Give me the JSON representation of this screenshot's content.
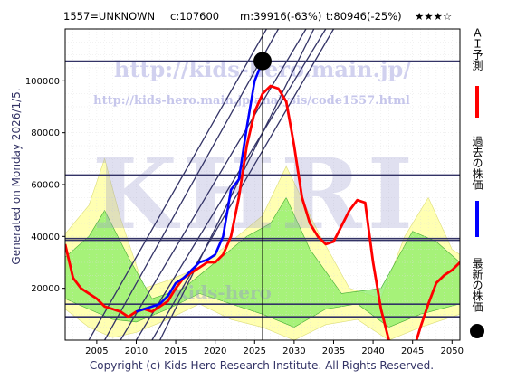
{
  "header": {
    "code": "1557=UNKNOWN",
    "current": "c:107600",
    "min": "m:39916(-63%)",
    "target": "t:80946(-25%)",
    "stars": "★★★☆"
  },
  "generated_label": "Generated on Monday 2026/1/5.",
  "copyright": "Copyright (c) Kids-Hero Research Institute. All Rights Reserved.",
  "watermark": {
    "url1": "http://kids-hero.main.jp/",
    "url2": "http://kids-hero.main.jp/analysis/code1557.html",
    "big": "KHRI",
    "small": "Kids-hero"
  },
  "legend": [
    {
      "label": "ＡＩ予測",
      "color": "#ff0000"
    },
    {
      "label": "過去の株価",
      "color": "#0000ff"
    },
    {
      "label": "最新の株価",
      "color": "#000000"
    }
  ],
  "colors": {
    "ai": "#ff0000",
    "past": "#0000ff",
    "band_green": "#88ee66",
    "band_yellow": "#ffffaa",
    "grid": "#bbbbbb",
    "hline": "#333366",
    "diag": "#333366"
  },
  "chart_data": {
    "type": "line",
    "xlim": [
      2001,
      2051
    ],
    "ylim": [
      0,
      120000
    ],
    "x_ticks": [
      "2005",
      "2010",
      "2015",
      "2020",
      "2025",
      "2030",
      "2035",
      "2040",
      "2045",
      "2050"
    ],
    "y_ticks": [
      "20000",
      "40000",
      "60000",
      "80000",
      "100000"
    ],
    "grid": true,
    "latest_point": {
      "x": 2026.0,
      "y": 107600
    },
    "latest_year": 2026.0,
    "horizontal_lines": [
      107600,
      63700,
      39200,
      38500,
      13900,
      9000
    ],
    "trend_lines": [
      {
        "x1": 2010.0,
        "y1": 0,
        "x2": 2034.0,
        "y2": 120000
      },
      {
        "x1": 2012.0,
        "y1": 0,
        "x2": 2035.0,
        "y2": 120000
      },
      {
        "x1": 2008.0,
        "y1": 0,
        "x2": 2031.5,
        "y2": 120000
      },
      {
        "x1": 2013.0,
        "y1": 0,
        "x2": 2032.5,
        "y2": 120000
      },
      {
        "x1": 2006.0,
        "y1": 0,
        "x2": 2028.0,
        "y2": 120000
      },
      {
        "x1": 2004.0,
        "y1": 0,
        "x2": 2026.5,
        "y2": 120000
      }
    ],
    "series": [
      {
        "key": "ai",
        "x": [
          2001,
          2002,
          2003,
          2004,
          2005,
          2006,
          2007,
          2008,
          2009,
          2010,
          2011,
          2012,
          2013,
          2014,
          2015,
          2016,
          2017,
          2018,
          2019,
          2020,
          2021,
          2022,
          2023,
          2024,
          2025,
          2026,
          2027,
          2028,
          2029,
          2030,
          2031,
          2032,
          2033,
          2034,
          2035,
          2036,
          2037,
          2038,
          2039,
          2040,
          2041,
          2042,
          2043,
          2044,
          2045,
          2046,
          2047,
          2048,
          2049,
          2050,
          2051
        ],
        "y": [
          37000,
          24000,
          20000,
          18000,
          16000,
          13000,
          12000,
          11000,
          9000,
          11000,
          12000,
          11000,
          13000,
          15000,
          20000,
          24000,
          26000,
          28000,
          30000,
          30000,
          33000,
          40000,
          55000,
          75000,
          88000,
          95000,
          98000,
          97000,
          92000,
          75000,
          55000,
          45000,
          40000,
          37000,
          38000,
          44000,
          50000,
          54000,
          53000,
          30000,
          12000,
          0,
          -5000,
          -8000,
          -5000,
          5000,
          14000,
          22000,
          25000,
          27000,
          30000
        ]
      },
      {
        "key": "past",
        "x": [
          2010,
          2011,
          2012,
          2013,
          2014,
          2015,
          2016,
          2017,
          2018,
          2019,
          2020,
          2021,
          2022,
          2023,
          2024,
          2025,
          2026
        ],
        "y": [
          11000,
          12000,
          13000,
          14000,
          17000,
          22000,
          24000,
          27000,
          30000,
          31000,
          33000,
          40000,
          58000,
          62000,
          82000,
          100000,
          107600
        ]
      }
    ],
    "bands": [
      {
        "key": "yellow",
        "upper": [
          [
            2001,
            41000
          ],
          [
            2004,
            52000
          ],
          [
            2006,
            70000
          ],
          [
            2008,
            47000
          ],
          [
            2011,
            20000
          ],
          [
            2014,
            23000
          ],
          [
            2018,
            28000
          ],
          [
            2022,
            38000
          ],
          [
            2026,
            48000
          ],
          [
            2029,
            67000
          ],
          [
            2033,
            42000
          ],
          [
            2037,
            20000
          ],
          [
            2041,
            16000
          ],
          [
            2044,
            40000
          ],
          [
            2047,
            55000
          ],
          [
            2050,
            35000
          ],
          [
            2051,
            33000
          ]
        ],
        "lower": [
          [
            2001,
            12000
          ],
          [
            2004,
            5000
          ],
          [
            2007,
            1000
          ],
          [
            2010,
            3000
          ],
          [
            2014,
            8000
          ],
          [
            2018,
            14000
          ],
          [
            2022,
            8000
          ],
          [
            2026,
            5000
          ],
          [
            2030,
            0
          ],
          [
            2034,
            6000
          ],
          [
            2038,
            8000
          ],
          [
            2042,
            0
          ],
          [
            2046,
            5000
          ],
          [
            2051,
            10000
          ]
        ]
      },
      {
        "key": "green",
        "upper": [
          [
            2001,
            32000
          ],
          [
            2004,
            40000
          ],
          [
            2006,
            50000
          ],
          [
            2009,
            32000
          ],
          [
            2012,
            16000
          ],
          [
            2016,
            20000
          ],
          [
            2020,
            30000
          ],
          [
            2024,
            40000
          ],
          [
            2027,
            45000
          ],
          [
            2029,
            55000
          ],
          [
            2032,
            35000
          ],
          [
            2036,
            18000
          ],
          [
            2041,
            20000
          ],
          [
            2045,
            42000
          ],
          [
            2048,
            38000
          ],
          [
            2051,
            30000
          ]
        ],
        "lower": [
          [
            2001,
            16000
          ],
          [
            2004,
            12000
          ],
          [
            2007,
            8000
          ],
          [
            2010,
            7000
          ],
          [
            2014,
            12000
          ],
          [
            2018,
            18000
          ],
          [
            2022,
            14000
          ],
          [
            2026,
            10000
          ],
          [
            2030,
            5000
          ],
          [
            2034,
            12000
          ],
          [
            2038,
            14000
          ],
          [
            2042,
            5000
          ],
          [
            2046,
            10000
          ],
          [
            2051,
            14000
          ]
        ]
      }
    ]
  }
}
